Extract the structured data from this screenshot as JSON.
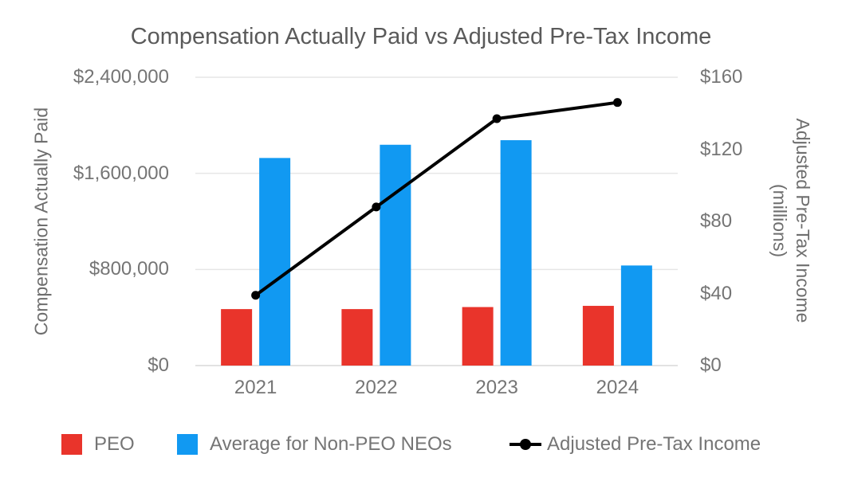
{
  "title": "Compensation Actually Paid vs Adjusted Pre-Tax Income",
  "colors": {
    "peo_bar": "#e9342b",
    "non_peo_bar": "#1199f2",
    "line": "#000000",
    "grid": "#e6e6e6",
    "axis_line": "#d9d9d9",
    "tick_text": "#757575",
    "title_text": "#5a5a5a"
  },
  "chart_data": {
    "type": "bar+line",
    "title": "Compensation Actually Paid vs Adjusted Pre-Tax Income",
    "categories": [
      "2021",
      "2022",
      "2023",
      "2024"
    ],
    "series": [
      {
        "name": "PEO",
        "type": "bar",
        "axis": "left",
        "color": "#e9342b",
        "values": [
          470000,
          470000,
          487000,
          497000
        ]
      },
      {
        "name": "Average for Non-PEO NEOs",
        "type": "bar",
        "axis": "left",
        "color": "#1199f2",
        "values": [
          1728000,
          1838000,
          1876000,
          833000
        ]
      },
      {
        "name": "Adjusted Pre-Tax Income",
        "type": "line",
        "axis": "right",
        "color": "#000000",
        "values": [
          39,
          88,
          137,
          146
        ]
      }
    ],
    "left_axis": {
      "label": "Compensation Actually Paid",
      "ylim": [
        0,
        2400000
      ],
      "ticks": [
        {
          "label": "$0",
          "value": 0
        },
        {
          "label": "$800,000",
          "value": 800000
        },
        {
          "label": "$1,600,000",
          "value": 1600000
        },
        {
          "label": "$2,400,000",
          "value": 2400000
        }
      ]
    },
    "right_axis": {
      "label": "Adjusted Pre-Tax Income",
      "label_line2": "(millions)",
      "ylim": [
        0,
        160
      ],
      "ticks": [
        {
          "label": "$0",
          "value": 0
        },
        {
          "label": "$40",
          "value": 40
        },
        {
          "label": "$80",
          "value": 80
        },
        {
          "label": "$120",
          "value": 120
        },
        {
          "label": "$160",
          "value": 160
        }
      ]
    },
    "grid": true,
    "legend_position": "bottom"
  }
}
